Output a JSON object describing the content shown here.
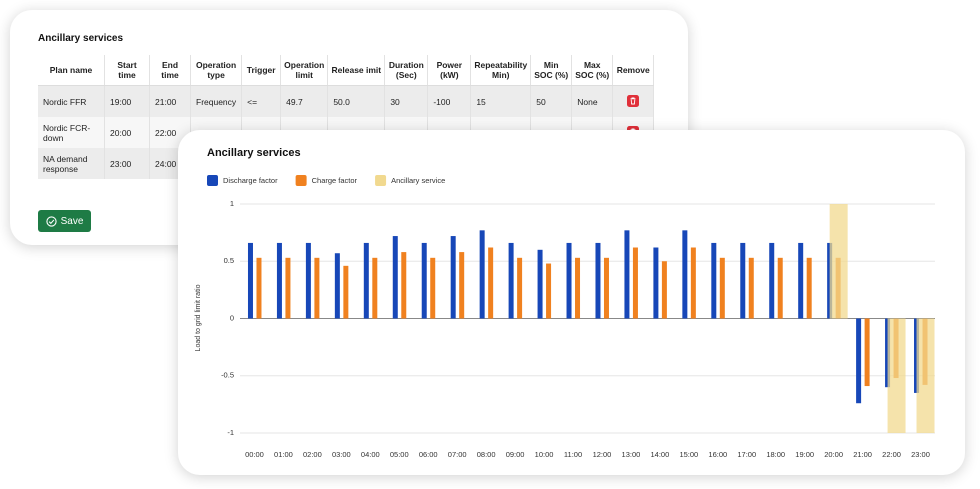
{
  "back_card": {
    "title": "Ancillary services",
    "table": {
      "columns": [
        "Plan name",
        "Start time",
        "End time",
        "Operation type",
        "Trigger",
        "Operation limit",
        "Release imit",
        "Duration (Sec)",
        "Power (kW)",
        "Repeatability Min)",
        "Min SOC (%)",
        "Max SOC (%)",
        "Remove"
      ],
      "rows": [
        [
          "Nordic FFR",
          "19:00",
          "21:00",
          "Frequency",
          "<=",
          "49.7",
          "50.0",
          "30",
          "-100",
          "15",
          "50",
          "None"
        ],
        [
          "Nordic FCR-down",
          "20:00",
          "22:00"
        ],
        [
          "NA demand response",
          "23:00",
          "24:00"
        ]
      ]
    },
    "save_button": "Save"
  },
  "chart_data": {
    "type": "bar",
    "title": "Ancillary services",
    "y_label": "Load to grid limit ratio",
    "categories": [
      "00:00",
      "01:00",
      "02:00",
      "03:00",
      "04:00",
      "05:00",
      "06:00",
      "07:00",
      "08:00",
      "09:00",
      "10:00",
      "11:00",
      "12:00",
      "13:00",
      "14:00",
      "15:00",
      "16:00",
      "17:00",
      "18:00",
      "19:00",
      "20:00",
      "21:00",
      "22:00",
      "23:00"
    ],
    "series": [
      {
        "name": "Discharge factor",
        "color": "#1747b8",
        "values": [
          0.66,
          0.66,
          0.66,
          0.57,
          0.66,
          0.72,
          0.66,
          0.72,
          0.77,
          0.66,
          0.6,
          0.66,
          0.66,
          0.77,
          0.62,
          0.77,
          0.66,
          0.66,
          0.66,
          0.66,
          0.66,
          -0.74,
          -0.6,
          -0.65
        ]
      },
      {
        "name": "Charge factor",
        "color": "#f0811f",
        "values": [
          0.53,
          0.53,
          0.53,
          0.46,
          0.53,
          0.58,
          0.53,
          0.58,
          0.62,
          0.53,
          0.48,
          0.53,
          0.53,
          0.62,
          0.5,
          0.62,
          0.53,
          0.53,
          0.53,
          0.53,
          0.53,
          -0.59,
          -0.52,
          -0.58
        ]
      },
      {
        "name": "Ancillary service",
        "color": "#f1d98f",
        "values": [
          null,
          null,
          null,
          null,
          null,
          null,
          null,
          null,
          null,
          null,
          null,
          null,
          null,
          null,
          null,
          null,
          null,
          null,
          null,
          null,
          1,
          null,
          -1,
          -1
        ]
      }
    ],
    "ylim": [
      -1,
      1
    ],
    "yticks": [
      -1,
      -0.5,
      0,
      0.5,
      1
    ],
    "grid": true
  }
}
